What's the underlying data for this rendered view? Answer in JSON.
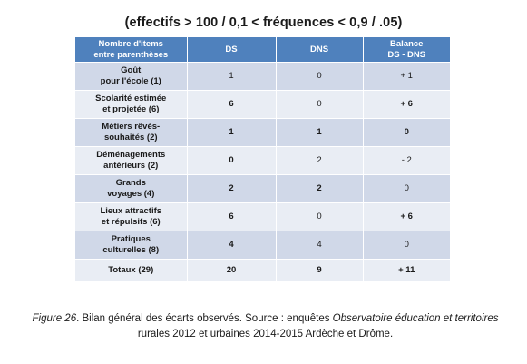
{
  "heading": "(effectifs > 100 / 0,1 < fréquences < 0,9 / .05)",
  "table": {
    "headers": {
      "col1_line1": "Nombre d'items",
      "col1_line2": "entre parenthèses",
      "col2": "DS",
      "col3": "DNS",
      "col4_line1": "Balance",
      "col4_line2": "DS - DNS"
    },
    "rows": [
      {
        "label1": "Goût",
        "label2": "pour l'école (1)",
        "ds": "1",
        "dns": "0",
        "balance": "+ 1"
      },
      {
        "label1": "Scolarité estimée",
        "label2": "et projetée (6)",
        "ds": "6",
        "dns": "0",
        "balance": "+ 6"
      },
      {
        "label1": "Métiers rêvés-",
        "label2": "souhaités (2)",
        "ds": "1",
        "dns": "1",
        "balance": "0"
      },
      {
        "label1": "Déménagements",
        "label2": "antérieurs (2)",
        "ds": "0",
        "dns": "2",
        "balance": "- 2"
      },
      {
        "label1": "Grands",
        "label2": "voyages (4)",
        "ds": "2",
        "dns": "2",
        "balance": "0"
      },
      {
        "label1": "Lieux attractifs",
        "label2": "et répulsifs (6)",
        "ds": "6",
        "dns": "0",
        "balance": "+ 6"
      },
      {
        "label1": "Pratiques",
        "label2": "culturelles (8)",
        "ds": "4",
        "dns": "4",
        "balance": "0"
      }
    ],
    "total": {
      "label": "Totaux (29)",
      "ds": "20",
      "dns": "9",
      "balance": "+ 11"
    }
  },
  "caption": {
    "fig": "Figure 26",
    "text1": ". Bilan général des écarts observés. Source : enquêtes ",
    "italic1": "Observatoire éducation et territoires",
    "text2": " rurales 2012 et urbaines 2014-2015 Ardèche et Drôme."
  }
}
